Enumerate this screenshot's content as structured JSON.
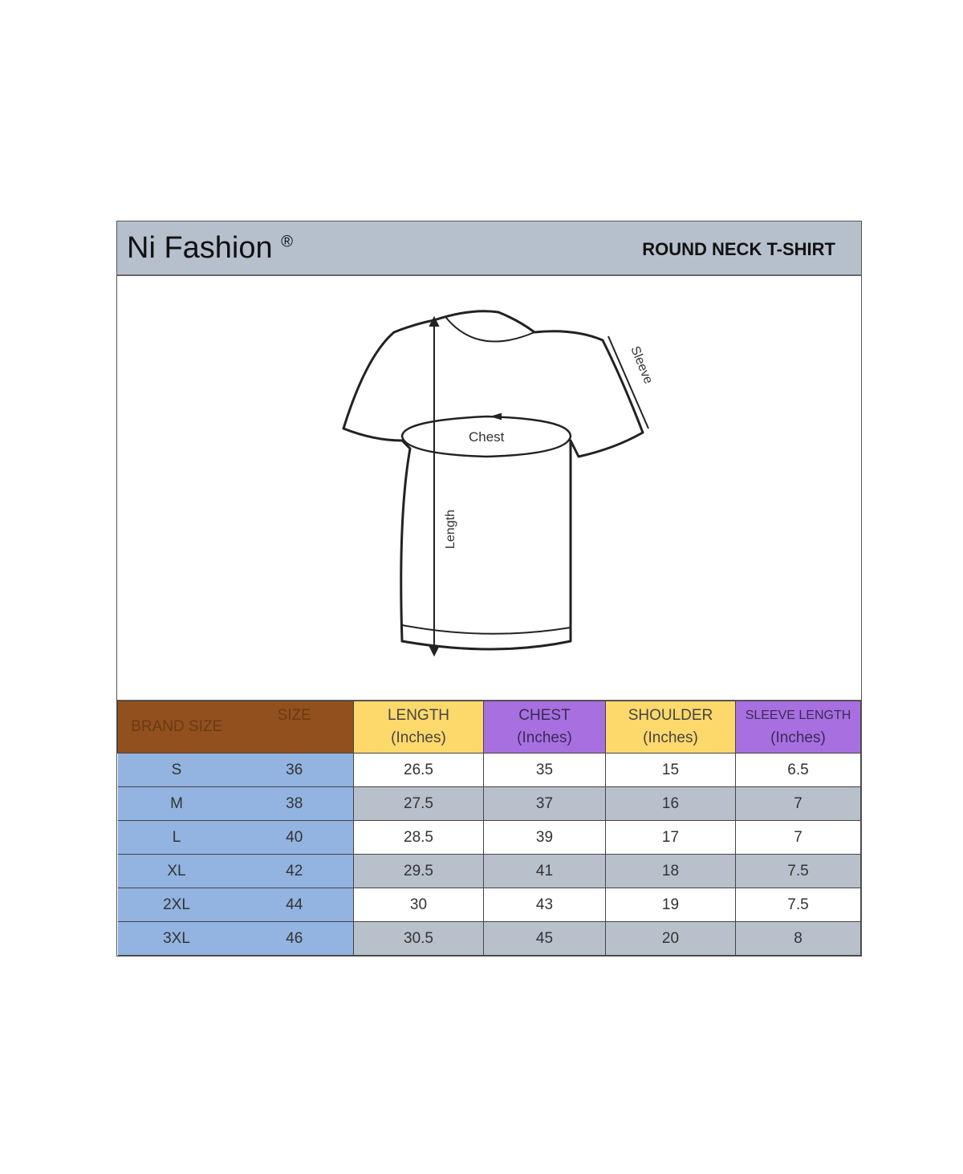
{
  "header": {
    "brand": "Ni Fashion",
    "registered": "®",
    "product": "ROUND NECK T-SHIRT"
  },
  "diagram": {
    "labels": {
      "chest": "Chest",
      "length": "Length",
      "sleeve": "Sleeve"
    }
  },
  "colors": {
    "header_bg": "#b6c0cd",
    "brand_size_header": "#92501e",
    "yellow_header": "#fdd86b",
    "purple_header": "#a86fe0",
    "size_column": "#93b3e0",
    "alt_row": "#b8c0cc"
  },
  "table": {
    "headers": {
      "brand_size": "BRAND SIZE",
      "size": "SIZE",
      "length": [
        "LENGTH",
        "(Inches)"
      ],
      "chest": [
        "CHEST",
        "(Inches)"
      ],
      "shoulder": [
        "SHOULDER",
        "(Inches)"
      ],
      "sleeve": [
        "SLEEVE LENGTH",
        "(Inches)"
      ]
    },
    "rows": [
      [
        "S",
        "36",
        "26.5",
        "35",
        "15",
        "6.5"
      ],
      [
        "M",
        "38",
        "27.5",
        "37",
        "16",
        "7"
      ],
      [
        "L",
        "40",
        "28.5",
        "39",
        "17",
        "7"
      ],
      [
        "XL",
        "42",
        "29.5",
        "41",
        "18",
        "7.5"
      ],
      [
        "2XL",
        "44",
        "30",
        "43",
        "19",
        "7.5"
      ],
      [
        "3XL",
        "46",
        "30.5",
        "45",
        "20",
        "8"
      ]
    ]
  }
}
